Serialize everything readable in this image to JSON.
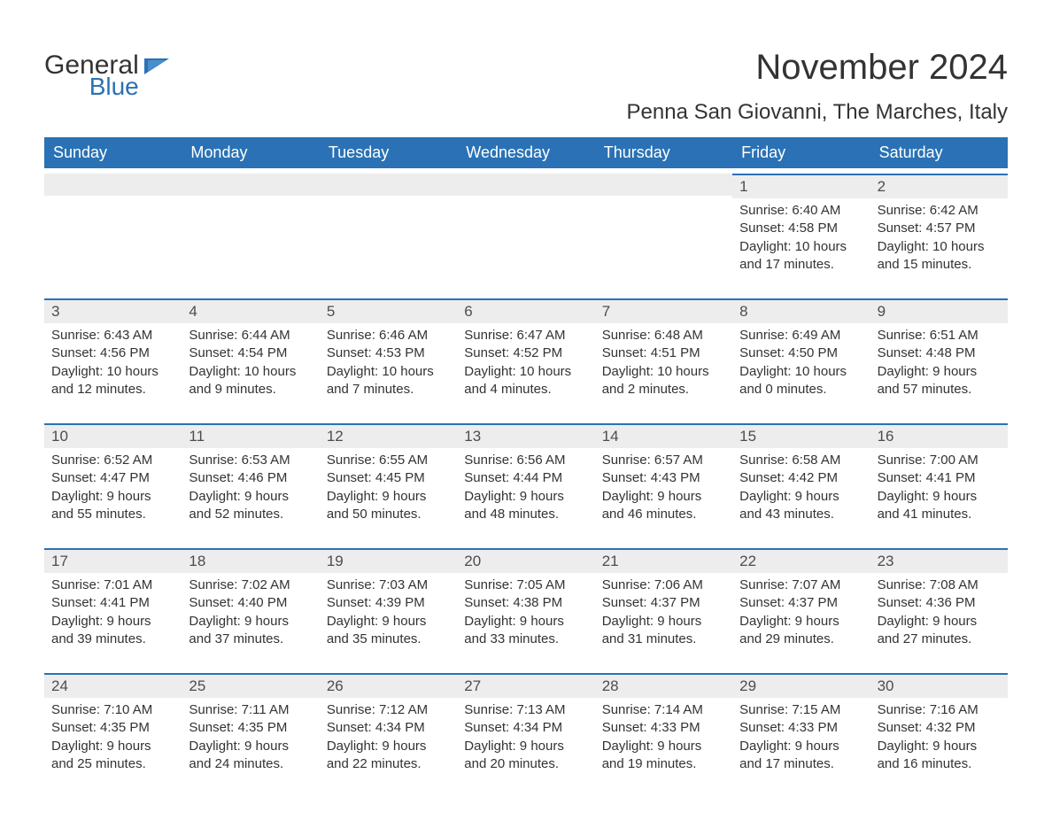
{
  "logo": {
    "line1": "General",
    "line2": "Blue",
    "accent_color": "#2a72b5"
  },
  "title": "November 2024",
  "location": "Penna San Giovanni, The Marches, Italy",
  "colors": {
    "header_bg": "#2a72b5",
    "header_text": "#ffffff",
    "daybar_bg": "#ededed",
    "daybar_border": "#2a72b5",
    "text": "#333333",
    "page_bg": "#ffffff"
  },
  "typography": {
    "title_fontsize": 40,
    "location_fontsize": 24,
    "dayheader_fontsize": 18,
    "body_fontsize": 15
  },
  "day_headers": [
    "Sunday",
    "Monday",
    "Tuesday",
    "Wednesday",
    "Thursday",
    "Friday",
    "Saturday"
  ],
  "weeks": [
    [
      {
        "num": "",
        "sunrise": "",
        "sunset": "",
        "daylight1": "",
        "daylight2": ""
      },
      {
        "num": "",
        "sunrise": "",
        "sunset": "",
        "daylight1": "",
        "daylight2": ""
      },
      {
        "num": "",
        "sunrise": "",
        "sunset": "",
        "daylight1": "",
        "daylight2": ""
      },
      {
        "num": "",
        "sunrise": "",
        "sunset": "",
        "daylight1": "",
        "daylight2": ""
      },
      {
        "num": "",
        "sunrise": "",
        "sunset": "",
        "daylight1": "",
        "daylight2": ""
      },
      {
        "num": "1",
        "sunrise": "Sunrise: 6:40 AM",
        "sunset": "Sunset: 4:58 PM",
        "daylight1": "Daylight: 10 hours",
        "daylight2": "and 17 minutes."
      },
      {
        "num": "2",
        "sunrise": "Sunrise: 6:42 AM",
        "sunset": "Sunset: 4:57 PM",
        "daylight1": "Daylight: 10 hours",
        "daylight2": "and 15 minutes."
      }
    ],
    [
      {
        "num": "3",
        "sunrise": "Sunrise: 6:43 AM",
        "sunset": "Sunset: 4:56 PM",
        "daylight1": "Daylight: 10 hours",
        "daylight2": "and 12 minutes."
      },
      {
        "num": "4",
        "sunrise": "Sunrise: 6:44 AM",
        "sunset": "Sunset: 4:54 PM",
        "daylight1": "Daylight: 10 hours",
        "daylight2": "and 9 minutes."
      },
      {
        "num": "5",
        "sunrise": "Sunrise: 6:46 AM",
        "sunset": "Sunset: 4:53 PM",
        "daylight1": "Daylight: 10 hours",
        "daylight2": "and 7 minutes."
      },
      {
        "num": "6",
        "sunrise": "Sunrise: 6:47 AM",
        "sunset": "Sunset: 4:52 PM",
        "daylight1": "Daylight: 10 hours",
        "daylight2": "and 4 minutes."
      },
      {
        "num": "7",
        "sunrise": "Sunrise: 6:48 AM",
        "sunset": "Sunset: 4:51 PM",
        "daylight1": "Daylight: 10 hours",
        "daylight2": "and 2 minutes."
      },
      {
        "num": "8",
        "sunrise": "Sunrise: 6:49 AM",
        "sunset": "Sunset: 4:50 PM",
        "daylight1": "Daylight: 10 hours",
        "daylight2": "and 0 minutes."
      },
      {
        "num": "9",
        "sunrise": "Sunrise: 6:51 AM",
        "sunset": "Sunset: 4:48 PM",
        "daylight1": "Daylight: 9 hours",
        "daylight2": "and 57 minutes."
      }
    ],
    [
      {
        "num": "10",
        "sunrise": "Sunrise: 6:52 AM",
        "sunset": "Sunset: 4:47 PM",
        "daylight1": "Daylight: 9 hours",
        "daylight2": "and 55 minutes."
      },
      {
        "num": "11",
        "sunrise": "Sunrise: 6:53 AM",
        "sunset": "Sunset: 4:46 PM",
        "daylight1": "Daylight: 9 hours",
        "daylight2": "and 52 minutes."
      },
      {
        "num": "12",
        "sunrise": "Sunrise: 6:55 AM",
        "sunset": "Sunset: 4:45 PM",
        "daylight1": "Daylight: 9 hours",
        "daylight2": "and 50 minutes."
      },
      {
        "num": "13",
        "sunrise": "Sunrise: 6:56 AM",
        "sunset": "Sunset: 4:44 PM",
        "daylight1": "Daylight: 9 hours",
        "daylight2": "and 48 minutes."
      },
      {
        "num": "14",
        "sunrise": "Sunrise: 6:57 AM",
        "sunset": "Sunset: 4:43 PM",
        "daylight1": "Daylight: 9 hours",
        "daylight2": "and 46 minutes."
      },
      {
        "num": "15",
        "sunrise": "Sunrise: 6:58 AM",
        "sunset": "Sunset: 4:42 PM",
        "daylight1": "Daylight: 9 hours",
        "daylight2": "and 43 minutes."
      },
      {
        "num": "16",
        "sunrise": "Sunrise: 7:00 AM",
        "sunset": "Sunset: 4:41 PM",
        "daylight1": "Daylight: 9 hours",
        "daylight2": "and 41 minutes."
      }
    ],
    [
      {
        "num": "17",
        "sunrise": "Sunrise: 7:01 AM",
        "sunset": "Sunset: 4:41 PM",
        "daylight1": "Daylight: 9 hours",
        "daylight2": "and 39 minutes."
      },
      {
        "num": "18",
        "sunrise": "Sunrise: 7:02 AM",
        "sunset": "Sunset: 4:40 PM",
        "daylight1": "Daylight: 9 hours",
        "daylight2": "and 37 minutes."
      },
      {
        "num": "19",
        "sunrise": "Sunrise: 7:03 AM",
        "sunset": "Sunset: 4:39 PM",
        "daylight1": "Daylight: 9 hours",
        "daylight2": "and 35 minutes."
      },
      {
        "num": "20",
        "sunrise": "Sunrise: 7:05 AM",
        "sunset": "Sunset: 4:38 PM",
        "daylight1": "Daylight: 9 hours",
        "daylight2": "and 33 minutes."
      },
      {
        "num": "21",
        "sunrise": "Sunrise: 7:06 AM",
        "sunset": "Sunset: 4:37 PM",
        "daylight1": "Daylight: 9 hours",
        "daylight2": "and 31 minutes."
      },
      {
        "num": "22",
        "sunrise": "Sunrise: 7:07 AM",
        "sunset": "Sunset: 4:37 PM",
        "daylight1": "Daylight: 9 hours",
        "daylight2": "and 29 minutes."
      },
      {
        "num": "23",
        "sunrise": "Sunrise: 7:08 AM",
        "sunset": "Sunset: 4:36 PM",
        "daylight1": "Daylight: 9 hours",
        "daylight2": "and 27 minutes."
      }
    ],
    [
      {
        "num": "24",
        "sunrise": "Sunrise: 7:10 AM",
        "sunset": "Sunset: 4:35 PM",
        "daylight1": "Daylight: 9 hours",
        "daylight2": "and 25 minutes."
      },
      {
        "num": "25",
        "sunrise": "Sunrise: 7:11 AM",
        "sunset": "Sunset: 4:35 PM",
        "daylight1": "Daylight: 9 hours",
        "daylight2": "and 24 minutes."
      },
      {
        "num": "26",
        "sunrise": "Sunrise: 7:12 AM",
        "sunset": "Sunset: 4:34 PM",
        "daylight1": "Daylight: 9 hours",
        "daylight2": "and 22 minutes."
      },
      {
        "num": "27",
        "sunrise": "Sunrise: 7:13 AM",
        "sunset": "Sunset: 4:34 PM",
        "daylight1": "Daylight: 9 hours",
        "daylight2": "and 20 minutes."
      },
      {
        "num": "28",
        "sunrise": "Sunrise: 7:14 AM",
        "sunset": "Sunset: 4:33 PM",
        "daylight1": "Daylight: 9 hours",
        "daylight2": "and 19 minutes."
      },
      {
        "num": "29",
        "sunrise": "Sunrise: 7:15 AM",
        "sunset": "Sunset: 4:33 PM",
        "daylight1": "Daylight: 9 hours",
        "daylight2": "and 17 minutes."
      },
      {
        "num": "30",
        "sunrise": "Sunrise: 7:16 AM",
        "sunset": "Sunset: 4:32 PM",
        "daylight1": "Daylight: 9 hours",
        "daylight2": "and 16 minutes."
      }
    ]
  ]
}
